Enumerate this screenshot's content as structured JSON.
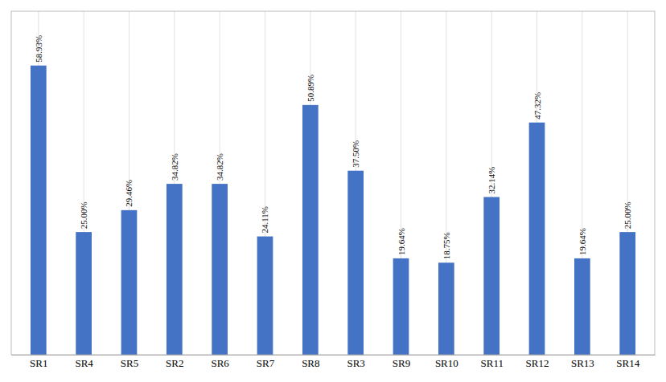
{
  "chart_data": {
    "type": "bar",
    "categories": [
      "SR1",
      "SR4",
      "SR5",
      "SR2",
      "SR6",
      "SR7",
      "SR8",
      "SR3",
      "SR9",
      "SR10",
      "SR11",
      "SR12",
      "SR13",
      "SR14"
    ],
    "values": [
      58.93,
      25.0,
      29.46,
      34.82,
      34.82,
      24.11,
      50.89,
      37.5,
      19.64,
      18.75,
      32.14,
      47.32,
      19.64,
      25.0
    ],
    "value_labels": [
      "58.93%",
      "25.00%",
      "29.46%",
      "34.82%",
      "34.82%",
      "24.11%",
      "50.89%",
      "37.50%",
      "19.64%",
      "18.75%",
      "32.14%",
      "47.32%",
      "19.64%",
      "25.00%"
    ],
    "color": "#4472C4",
    "ylim": [
      0,
      70
    ],
    "grid": true,
    "data_labels": true,
    "tick_labels": "x"
  }
}
